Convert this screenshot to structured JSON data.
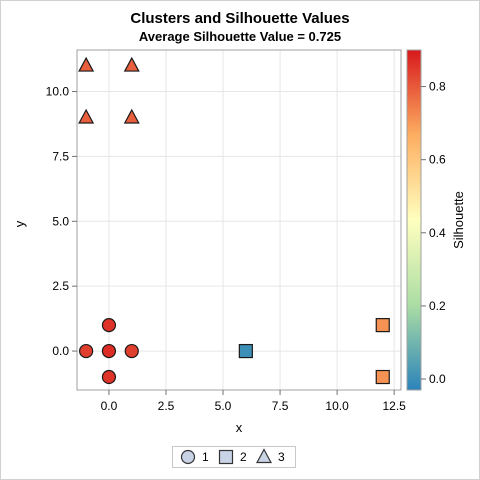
{
  "chart_data": {
    "type": "scatter",
    "title": "Clusters and Silhouette Values",
    "subtitle": "Average Silhouette Value = 0.725",
    "xlabel": "x",
    "ylabel": "y",
    "xlim": [
      -1.4,
      12.8
    ],
    "ylim": [
      -1.5,
      11.6
    ],
    "xticks": [
      0.0,
      2.5,
      5.0,
      7.5,
      10.0,
      12.5
    ],
    "xtick_labels": [
      "0.0",
      "2.5",
      "5.0",
      "7.5",
      "10.0",
      "12.5"
    ],
    "yticks": [
      0.0,
      2.5,
      5.0,
      7.5,
      10.0
    ],
    "ytick_labels": [
      "0.0",
      "2.5",
      "5.0",
      "7.5",
      "10.0"
    ],
    "grid": true,
    "colorbar": {
      "label": "Silhouette",
      "range": [
        -0.03,
        0.9
      ],
      "ticks": [
        0.0,
        0.2,
        0.4,
        0.6,
        0.8
      ],
      "tick_labels": [
        "0.0",
        "0.2",
        "0.4",
        "0.6",
        "0.8"
      ],
      "colors": [
        "#2b83ba",
        "#abdda4",
        "#ffffbf",
        "#fdae61",
        "#d7191c"
      ]
    },
    "legend": {
      "position": "bottom",
      "entries": [
        {
          "label": "1",
          "marker": "circle"
        },
        {
          "label": "2",
          "marker": "square"
        },
        {
          "label": "3",
          "marker": "triangle"
        }
      ]
    },
    "points": [
      {
        "x": 0,
        "y": 1,
        "cluster": 1,
        "silhouette": 0.86
      },
      {
        "x": -1,
        "y": 0,
        "cluster": 1,
        "silhouette": 0.84
      },
      {
        "x": 0,
        "y": 0,
        "cluster": 1,
        "silhouette": 0.87
      },
      {
        "x": 1,
        "y": 0,
        "cluster": 1,
        "silhouette": 0.84
      },
      {
        "x": 0,
        "y": -1,
        "cluster": 1,
        "silhouette": 0.86
      },
      {
        "x": 6,
        "y": 0,
        "cluster": 2,
        "silhouette": 0.0
      },
      {
        "x": 12,
        "y": 1,
        "cluster": 2,
        "silhouette": 0.71
      },
      {
        "x": 12,
        "y": -1,
        "cluster": 2,
        "silhouette": 0.71
      },
      {
        "x": -1,
        "y": 11,
        "cluster": 3,
        "silhouette": 0.79
      },
      {
        "x": 1,
        "y": 11,
        "cluster": 3,
        "silhouette": 0.79
      },
      {
        "x": -1,
        "y": 9,
        "cluster": 3,
        "silhouette": 0.79
      },
      {
        "x": 1,
        "y": 9,
        "cluster": 3,
        "silhouette": 0.79
      }
    ]
  }
}
